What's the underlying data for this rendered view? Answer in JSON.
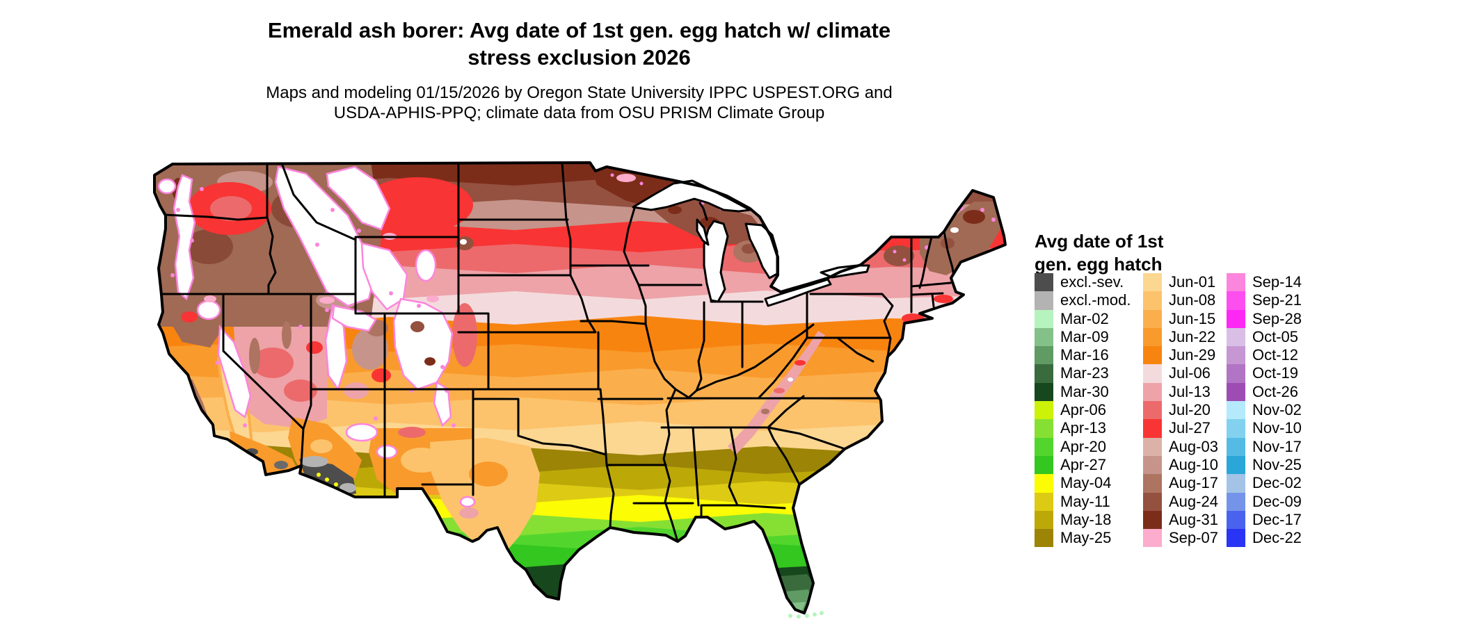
{
  "title": {
    "line1": "Emerald ash borer: Avg date of 1st gen. egg hatch w/ climate",
    "line2": "stress exclusion 2026"
  },
  "subtitle": {
    "line1": "Maps and modeling 01/15/2026 by Oregon State University IPPC USPEST.ORG and",
    "line2": "USDA-APHIS-PPQ; climate data from OSU PRISM Climate Group"
  },
  "legend": {
    "title_line1": "Avg date of 1st",
    "title_line2": "gen. egg hatch",
    "columns": [
      {
        "items": [
          {
            "label": "excl.-sev.",
            "color": "#4d4d4d"
          },
          {
            "label": "excl.-mod.",
            "color": "#b3b3b3"
          },
          {
            "label": "Mar-02",
            "color": "#b7f3bf"
          },
          {
            "label": "Mar-09",
            "color": "#84c189"
          },
          {
            "label": "Mar-16",
            "color": "#5f9b63"
          },
          {
            "label": "Mar-23",
            "color": "#3a6b3d"
          },
          {
            "label": "Mar-30",
            "color": "#17471c"
          },
          {
            "label": "Apr-06",
            "color": "#ccf207"
          },
          {
            "label": "Apr-13",
            "color": "#86e033"
          },
          {
            "label": "Apr-20",
            "color": "#52d62e"
          },
          {
            "label": "Apr-27",
            "color": "#33c71f"
          },
          {
            "label": "May-04",
            "color": "#fcfc04"
          },
          {
            "label": "May-11",
            "color": "#ddca14"
          },
          {
            "label": "May-18",
            "color": "#bca908"
          },
          {
            "label": "May-25",
            "color": "#9b8406"
          }
        ]
      },
      {
        "items": [
          {
            "label": "Jun-01",
            "color": "#fcd792"
          },
          {
            "label": "Jun-08",
            "color": "#fcc36c"
          },
          {
            "label": "Jun-15",
            "color": "#fbaf4c"
          },
          {
            "label": "Jun-22",
            "color": "#f99a2c"
          },
          {
            "label": "Jun-29",
            "color": "#f88410"
          },
          {
            "label": "Jul-06",
            "color": "#f3dbdd"
          },
          {
            "label": "Jul-13",
            "color": "#eda3a8"
          },
          {
            "label": "Jul-20",
            "color": "#ec6a6c"
          },
          {
            "label": "Jul-27",
            "color": "#f93434"
          },
          {
            "label": "Aug-03",
            "color": "#dcb2a8"
          },
          {
            "label": "Aug-10",
            "color": "#c6948a"
          },
          {
            "label": "Aug-17",
            "color": "#ad7462"
          },
          {
            "label": "Aug-24",
            "color": "#945140"
          },
          {
            "label": "Aug-31",
            "color": "#7c2d1a"
          },
          {
            "label": "Sep-07",
            "color": "#fcaccd"
          }
        ]
      },
      {
        "items": [
          {
            "label": "Sep-14",
            "color": "#fc85dd"
          },
          {
            "label": "Sep-21",
            "color": "#fd4ff0"
          },
          {
            "label": "Sep-28",
            "color": "#fd28f4"
          },
          {
            "label": "Oct-05",
            "color": "#d9bfe6"
          },
          {
            "label": "Oct-12",
            "color": "#c697d2"
          },
          {
            "label": "Oct-19",
            "color": "#b274c4"
          },
          {
            "label": "Oct-26",
            "color": "#9d4cb4"
          },
          {
            "label": "Nov-02",
            "color": "#b5e9fc"
          },
          {
            "label": "Nov-10",
            "color": "#82d2ef"
          },
          {
            "label": "Nov-17",
            "color": "#55bbe4"
          },
          {
            "label": "Nov-25",
            "color": "#2ba6d9"
          },
          {
            "label": "Dec-02",
            "color": "#a3c4e6"
          },
          {
            "label": "Dec-09",
            "color": "#7494e9"
          },
          {
            "label": "Dec-17",
            "color": "#4a63ee"
          },
          {
            "label": "Dec-22",
            "color": "#2a34f4"
          }
        ]
      }
    ]
  }
}
